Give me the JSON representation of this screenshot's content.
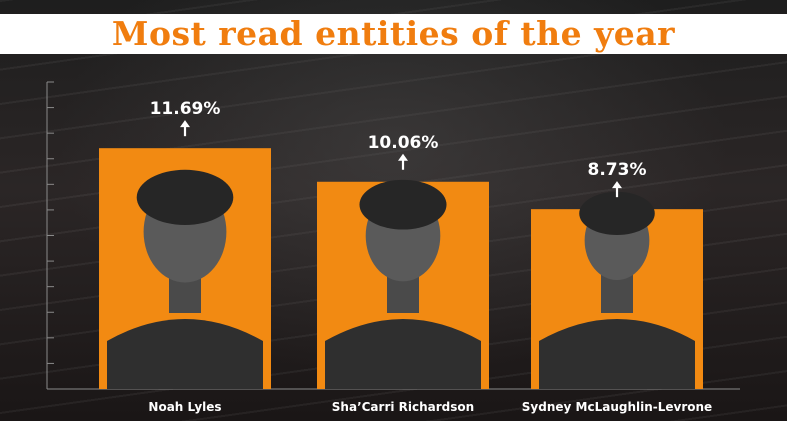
{
  "colors": {
    "bar": "#f28a12",
    "title": "#f07d0f",
    "title_band": "#ffffff",
    "text": "#ffffff",
    "axis": "#8a8a8a"
  },
  "title": "Most read entities of the year",
  "chart_data": {
    "type": "bar",
    "title": "Most read entities of the year",
    "categories": [
      "Noah Lyles",
      "Sha’Carri Richardson",
      "Sydney McLaughlin-Levrone"
    ],
    "values": [
      11.69,
      10.06,
      8.73
    ],
    "value_labels": [
      "11.69%",
      "10.06%",
      "8.73%"
    ],
    "units": "%",
    "ylim": [
      0,
      15
    ],
    "grid": false,
    "y_ticks_shown": false,
    "legend": "none",
    "bar_images": [
      "portrait of Noah Lyles",
      "portrait of Sha’Carri Richardson",
      "portrait of Sydney McLaughlin-Levrone"
    ]
  }
}
